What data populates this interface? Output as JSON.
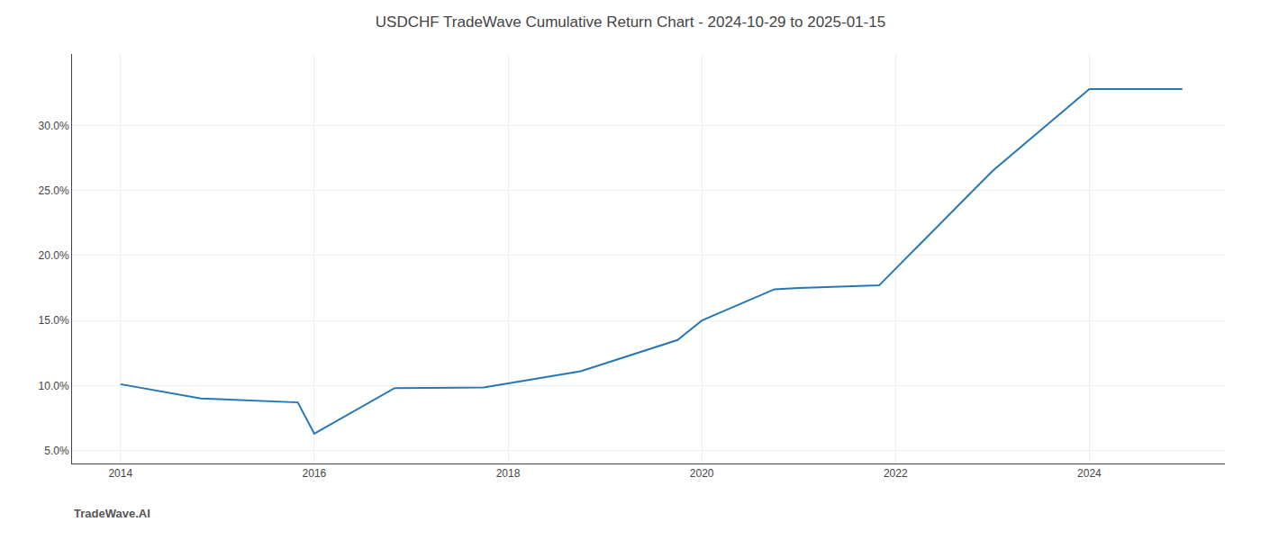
{
  "chart_data": {
    "type": "line",
    "title": "USDCHF TradeWave Cumulative Return Chart - 2024-10-29 to 2025-01-15",
    "annotations": [
      "TradeWave.AI"
    ],
    "x": [
      2014.0,
      2014.83,
      2015.83,
      2016.0,
      2016.83,
      2017.75,
      2018.75,
      2019.75,
      2020.0,
      2020.75,
      2021.0,
      2021.83,
      2023.0,
      2024.0,
      2024.96
    ],
    "values": [
      10.1,
      9.0,
      8.7,
      6.3,
      9.8,
      9.85,
      11.1,
      13.5,
      15.0,
      17.4,
      17.5,
      17.7,
      26.5,
      32.8,
      32.8
    ],
    "color": "#2777b4",
    "xlim": [
      2013.5,
      2025.4
    ],
    "ylim": [
      4.0,
      35.5
    ],
    "xticks": [
      2014,
      2016,
      2018,
      2020,
      2022,
      2024
    ],
    "yticks": [
      {
        "value": 5.0,
        "label": "5.0%"
      },
      {
        "value": 10.0,
        "label": "10.0%"
      },
      {
        "value": 15.0,
        "label": "15.0%"
      },
      {
        "value": 20.0,
        "label": "20.0%"
      },
      {
        "value": 25.0,
        "label": "25.0%"
      },
      {
        "value": 30.0,
        "label": "30.0%"
      }
    ],
    "grid": true
  }
}
